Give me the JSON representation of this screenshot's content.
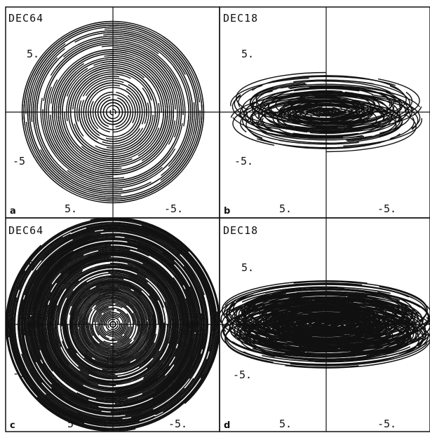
{
  "figure": {
    "panels": [
      {
        "id": "a",
        "letter": "a",
        "title": "DEC64",
        "y_tick_top": "5.",
        "y_tick_bottom": "-5",
        "x_tick_left": "5.",
        "x_tick_right": "-5.",
        "shape": "circular",
        "density": "low"
      },
      {
        "id": "b",
        "letter": "b",
        "title": "DEC18",
        "y_tick_top": "5.",
        "y_tick_bottom": "-5.",
        "x_tick_left": "5.",
        "x_tick_right": "-5.",
        "shape": "flattened",
        "density": "low"
      },
      {
        "id": "c",
        "letter": "c",
        "title": "DEC64",
        "y_tick_top": "5",
        "y_tick_bottom": "-5",
        "x_tick_left": "5",
        "x_tick_right": "-5.",
        "shape": "circular",
        "density": "high"
      },
      {
        "id": "d",
        "letter": "d",
        "title": "DEC18",
        "y_tick_top": "5.",
        "y_tick_bottom": "-5.",
        "x_tick_left": "5.",
        "x_tick_right": "-5.",
        "shape": "flattened",
        "density": "high"
      }
    ],
    "colors": {
      "ink": "#111111",
      "background": "#ffffff"
    }
  }
}
